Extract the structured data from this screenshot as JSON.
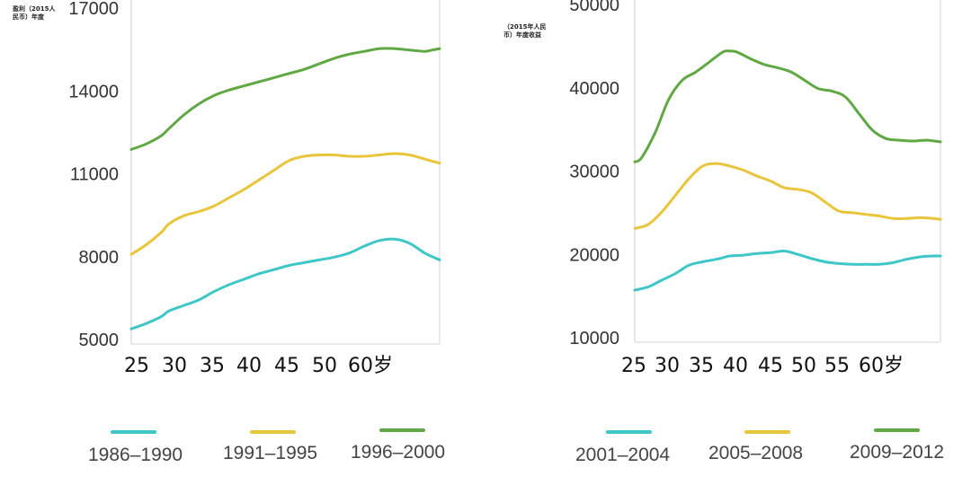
{
  "chart_data": [
    {
      "type": "line",
      "title": "",
      "ylabel": "盈利（2015人民币）年度",
      "xlabel": "",
      "yticks": [
        "17000",
        "14000",
        "11000",
        "8000",
        "5000"
      ],
      "ylim": [
        5000,
        17000
      ],
      "xticks": [
        "25",
        "30",
        "35",
        "40",
        "45",
        "50",
        "60岁"
      ],
      "xlim": [
        25,
        66
      ],
      "series": [
        {
          "name": "1986–1990",
          "color": "#3fc6c6",
          "x": [
            25,
            27,
            29,
            30,
            32,
            34,
            36,
            38,
            40,
            42,
            44,
            46,
            48,
            50,
            52,
            54,
            56,
            58,
            60,
            62,
            64,
            66
          ],
          "values": [
            5350,
            5550,
            5800,
            6000,
            6200,
            6400,
            6700,
            6950,
            7150,
            7350,
            7500,
            7650,
            7750,
            7850,
            7950,
            8100,
            8350,
            8550,
            8600,
            8450,
            8100,
            7850
          ]
        },
        {
          "name": "1991–1995",
          "color": "#e9c53c",
          "x": [
            25,
            27,
            29,
            30,
            32,
            34,
            36,
            38,
            40,
            42,
            44,
            46,
            48,
            50,
            52,
            54,
            56,
            58,
            60,
            62,
            64,
            66
          ],
          "values": [
            8050,
            8400,
            8850,
            9150,
            9450,
            9600,
            9800,
            10100,
            10400,
            10750,
            11100,
            11450,
            11600,
            11650,
            11650,
            11600,
            11600,
            11650,
            11700,
            11650,
            11500,
            11350
          ]
        },
        {
          "name": "1996–2000",
          "color": "#5fa843",
          "x": [
            25,
            27,
            29,
            30,
            32,
            34,
            36,
            38,
            40,
            42,
            44,
            46,
            48,
            50,
            52,
            54,
            56,
            58,
            60,
            62,
            64,
            65,
            66
          ],
          "values": [
            11850,
            12050,
            12350,
            12600,
            13100,
            13500,
            13800,
            14000,
            14150,
            14300,
            14450,
            14600,
            14750,
            14950,
            15150,
            15300,
            15400,
            15500,
            15500,
            15450,
            15400,
            15450,
            15500
          ]
        }
      ]
    },
    {
      "type": "line",
      "title": "",
      "ylabel": "（2015年人民币）年度收益",
      "xlabel": "",
      "yticks": [
        "50000",
        "40000",
        "30000",
        "20000",
        "10000"
      ],
      "ylim": [
        10000,
        50000
      ],
      "xticks": [
        "25",
        "30",
        "35",
        "40",
        "45",
        "50",
        "55",
        "60岁"
      ],
      "xlim": [
        25,
        70
      ],
      "series": [
        {
          "name": "2001–2004",
          "color": "#3fc6c6",
          "x": [
            25,
            27,
            29,
            31,
            33,
            35,
            37,
            39,
            41,
            43,
            45,
            47,
            49,
            51,
            53,
            55,
            57,
            59,
            61,
            63,
            65,
            67,
            69,
            70
          ],
          "values": [
            15600,
            16000,
            16800,
            17600,
            18600,
            19000,
            19300,
            19700,
            19800,
            20000,
            20100,
            20300,
            19900,
            19400,
            19000,
            18800,
            18700,
            18700,
            18700,
            18900,
            19300,
            19600,
            19700,
            19700
          ]
        },
        {
          "name": "2005–2008",
          "color": "#e9c53c",
          "x": [
            25,
            27,
            29,
            31,
            33,
            35,
            37,
            39,
            41,
            43,
            45,
            47,
            49,
            51,
            53,
            55,
            57,
            59,
            61,
            63,
            65,
            67,
            69,
            70
          ],
          "values": [
            23000,
            23500,
            25000,
            27000,
            29000,
            30500,
            30800,
            30500,
            30000,
            29300,
            28700,
            27900,
            27700,
            27300,
            26200,
            25100,
            24900,
            24700,
            24500,
            24200,
            24200,
            24300,
            24200,
            24100
          ]
        },
        {
          "name": "2009–2012",
          "color": "#5fa843",
          "x": [
            25,
            26,
            28,
            30,
            32,
            34,
            36,
            38,
            39,
            40,
            42,
            44,
            46,
            48,
            50,
            52,
            54,
            56,
            58,
            60,
            62,
            64,
            66,
            68,
            70
          ],
          "values": [
            31000,
            31500,
            34500,
            38500,
            40800,
            41800,
            43000,
            44200,
            44300,
            44200,
            43400,
            42700,
            42300,
            41800,
            40800,
            39800,
            39500,
            38800,
            36800,
            34800,
            33800,
            33600,
            33500,
            33600,
            33400
          ]
        }
      ]
    }
  ]
}
